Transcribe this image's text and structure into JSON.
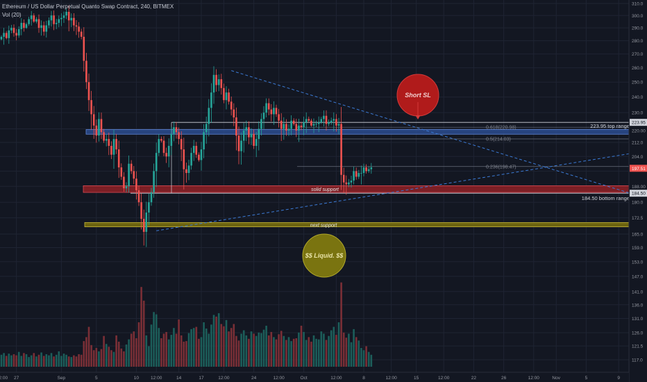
{
  "header": {
    "title": "Ethereum / US Dollar Perpetual Quanto Swap Contract, 240, BITMEX",
    "volume_label": "Vol (20)"
  },
  "chart_data": {
    "type": "candlestick",
    "symbol": "ETHUSD",
    "interval": "240",
    "exchange": "BITMEX",
    "y_scale": "log",
    "ylim": [
      112,
      312
    ],
    "y_ticks": [
      117.0,
      121.5,
      126.0,
      131.0,
      136.0,
      141.0,
      147.0,
      153.0,
      159.0,
      165.0,
      172.5,
      180.0,
      188.0,
      196.0,
      204.0,
      212.0,
      220.0,
      230.0,
      240.0,
      250.0,
      260.0,
      270.0,
      280.0,
      290.0,
      300.0,
      310.0
    ],
    "x_ticks": [
      {
        "label": "2:00",
        "bar": -1
      },
      {
        "label": "27",
        "bar": 6
      },
      {
        "label": "Sep",
        "bar": 24
      },
      {
        "label": "5",
        "bar": 38
      },
      {
        "label": "10",
        "bar": 54
      },
      {
        "label": "12:00",
        "bar": 62
      },
      {
        "label": "14",
        "bar": 71
      },
      {
        "label": "17",
        "bar": 80
      },
      {
        "label": "12:00",
        "bar": 89
      },
      {
        "label": "24",
        "bar": 101
      },
      {
        "label": "12:00",
        "bar": 111
      },
      {
        "label": "Oct",
        "bar": 121
      },
      {
        "label": "12:00",
        "bar": 134
      },
      {
        "label": "8",
        "bar": 145
      },
      {
        "label": "12:00",
        "bar": 156
      },
      {
        "label": "15",
        "bar": 166
      },
      {
        "label": "12:00",
        "bar": 177
      },
      {
        "label": "22",
        "bar": 189
      },
      {
        "label": "26",
        "bar": 201
      },
      {
        "label": "12:00",
        "bar": 213
      },
      {
        "label": "Nov",
        "bar": 222
      },
      {
        "label": "5",
        "bar": 234
      },
      {
        "label": "9",
        "bar": 247
      }
    ],
    "closes": [
      283,
      286,
      282,
      288,
      290,
      286,
      284,
      289,
      294,
      290,
      293,
      297,
      300,
      295,
      297,
      290,
      292,
      287,
      292,
      296,
      300,
      293,
      294,
      297,
      298,
      300,
      303,
      296,
      298,
      292,
      291,
      287,
      283,
      265,
      250,
      238,
      229,
      222,
      216,
      226,
      218,
      213,
      214,
      210,
      205,
      214,
      208,
      198,
      193,
      187,
      188,
      200,
      196,
      192,
      186,
      180,
      172,
      166,
      175,
      180,
      185,
      196,
      206,
      214,
      213,
      206,
      204,
      210,
      217,
      221,
      218,
      214,
      208,
      197,
      195,
      199,
      206,
      210,
      205,
      202,
      208,
      218,
      223,
      233,
      243,
      255,
      248,
      252,
      246,
      238,
      243,
      237,
      232,
      227,
      216,
      207,
      213,
      219,
      221,
      215,
      217,
      210,
      214,
      220,
      226,
      230,
      236,
      232,
      229,
      233,
      229,
      225,
      220,
      223,
      219,
      220,
      225,
      223,
      219,
      222,
      221,
      224,
      226,
      225,
      222,
      223,
      223,
      224,
      226,
      228,
      223,
      224,
      225,
      226,
      222,
      223,
      194,
      190,
      189,
      190,
      191,
      196,
      193,
      195,
      195,
      198,
      196,
      197,
      198
    ],
    "volumes": [
      21,
      24,
      19,
      23,
      20,
      22,
      20,
      26,
      19,
      24,
      22,
      17,
      20,
      24,
      18,
      21,
      25,
      19,
      22,
      20,
      24,
      18,
      21,
      27,
      19,
      23,
      21,
      18,
      17,
      20,
      18,
      22,
      21,
      45,
      52,
      70,
      38,
      29,
      33,
      27,
      31,
      54,
      40,
      35,
      29,
      26,
      55,
      44,
      32,
      27,
      39,
      48,
      58,
      62,
      50,
      78,
      140,
      116,
      55,
      36,
      74,
      96,
      92,
      68,
      50,
      58,
      61,
      48,
      56,
      68,
      58,
      83,
      55,
      44,
      45,
      59,
      66,
      68,
      70,
      49,
      52,
      78,
      67,
      58,
      74,
      91,
      88,
      94,
      75,
      71,
      82,
      62,
      68,
      75,
      54,
      46,
      58,
      64,
      55,
      49,
      62,
      58,
      54,
      60,
      59,
      65,
      72,
      55,
      61,
      52,
      48,
      57,
      63,
      54,
      47,
      52,
      45,
      49,
      50,
      60,
      72,
      61,
      47,
      52,
      44,
      55,
      49,
      48,
      62,
      58,
      47,
      54,
      64,
      70,
      56,
      78,
      148,
      60,
      51,
      58,
      43,
      66,
      52,
      46,
      33,
      29,
      36,
      26,
      21
    ],
    "annotations": {
      "short_sl": "Short SL",
      "liquid": "$$ Liquid. $$",
      "top_range": "223.95 top range",
      "bottom_range": "184.50 bottom range",
      "solid_support": "solid support",
      "next_support": "next support",
      "fib_0618": "0.618(220.98)",
      "fib_05": "0.5(214.03)",
      "fib_0236": "0.236(198.47)",
      "price_top_tag": "223.95",
      "price_cur_tag": "197.51",
      "price_bot_tag": "184.50"
    },
    "levels": {
      "top_range": 223.95,
      "bottom_range": 184.5,
      "blue_zone": [
        216.8,
        219.6
      ],
      "red_zone": [
        184.9,
        188.3
      ],
      "yellow_zone": [
        168.3,
        170.3
      ],
      "fib_0618": 220.98,
      "fib_05": 214.03,
      "fib_0236": 198.47,
      "current": 197.51
    },
    "colors": {
      "bg": "#131722",
      "up": "#26a69a",
      "down": "#ef5350",
      "vol_up": "#1c5e5a",
      "vol_down": "#7a2f36",
      "grid": "#1f2433",
      "axis_text": "#9598a1",
      "trend": "#3c7bd6",
      "range_line": "#d1d4dc",
      "blue_zone": "#2b4c8f",
      "red_zone": "#7c1f25",
      "yellow_zone": "#6d6410",
      "short_sl": "#b01b1b",
      "liquid": "#7a7410",
      "price_tag": "#ef5350"
    }
  }
}
